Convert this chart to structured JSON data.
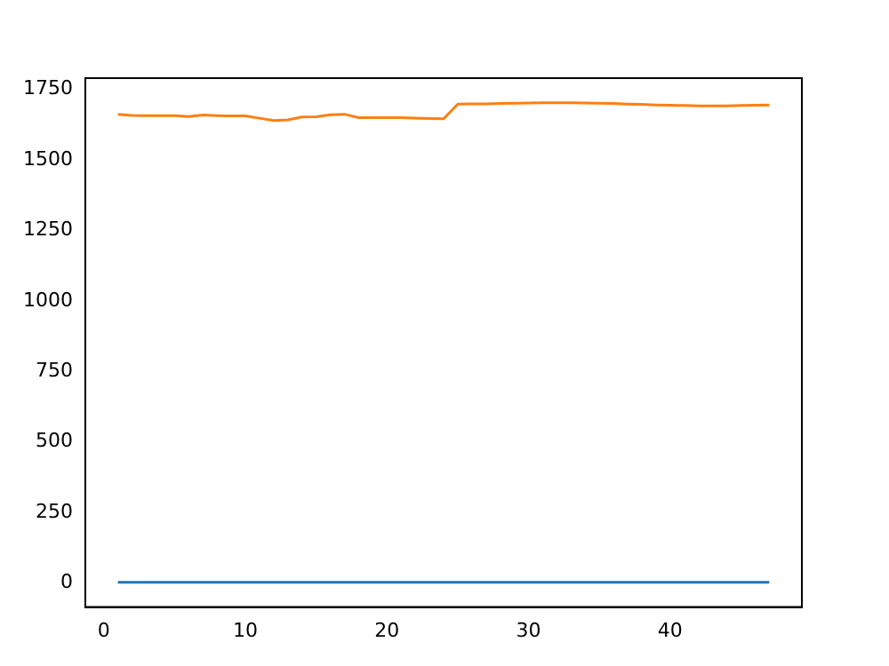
{
  "chart_data": {
    "type": "line",
    "x": [
      1,
      2,
      3,
      4,
      5,
      6,
      7,
      8,
      9,
      10,
      11,
      12,
      13,
      14,
      15,
      16,
      17,
      18,
      19,
      20,
      21,
      22,
      23,
      24,
      25,
      26,
      27,
      28,
      29,
      30,
      31,
      32,
      33,
      34,
      35,
      36,
      37,
      38,
      39,
      40,
      41,
      42,
      43,
      44,
      45,
      46,
      47
    ],
    "series": [
      {
        "color": "#1f77b4",
        "values": [
          3,
          3,
          3,
          3,
          3,
          3,
          3,
          3,
          3,
          3,
          3,
          3,
          3,
          3,
          3,
          3,
          3,
          3,
          3,
          3,
          3,
          3,
          3,
          3,
          3,
          3,
          3,
          3,
          3,
          3,
          3,
          3,
          3,
          3,
          3,
          3,
          3,
          3,
          3,
          3,
          3,
          3,
          3,
          3,
          3,
          3,
          3
        ]
      },
      {
        "color": "#ff7f0e",
        "values": [
          1662,
          1658,
          1657,
          1657,
          1657,
          1654,
          1659,
          1657,
          1656,
          1656,
          1648,
          1640,
          1642,
          1652,
          1653,
          1660,
          1662,
          1650,
          1650,
          1650,
          1650,
          1648,
          1647,
          1646,
          1698,
          1699,
          1699,
          1700,
          1701,
          1702,
          1703,
          1703,
          1703,
          1702,
          1701,
          1700,
          1698,
          1697,
          1695,
          1694,
          1693,
          1692,
          1692,
          1692,
          1693,
          1694,
          1695
        ]
      }
    ],
    "xlim": [
      -1.3,
      49.3
    ],
    "ylim": [
      -85,
      1790
    ],
    "xticks": [
      0,
      10,
      20,
      30,
      40
    ],
    "yticks": [
      0,
      250,
      500,
      750,
      1000,
      1250,
      1500,
      1750
    ],
    "grid": false,
    "legend": false,
    "marker": "none",
    "line_style": "solid"
  }
}
